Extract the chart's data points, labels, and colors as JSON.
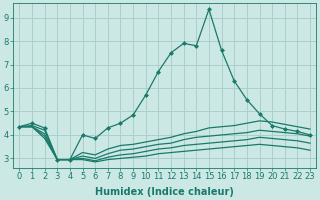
{
  "xlabel": "Humidex (Indice chaleur)",
  "x_values": [
    0,
    1,
    2,
    3,
    4,
    5,
    6,
    7,
    8,
    9,
    10,
    11,
    12,
    13,
    14,
    15,
    16,
    17,
    18,
    19,
    20,
    21,
    22,
    23
  ],
  "lines": [
    {
      "y": [
        4.35,
        4.5,
        4.3,
        2.95,
        2.95,
        4.0,
        3.85,
        4.3,
        4.5,
        4.85,
        5.7,
        6.7,
        7.5,
        7.9,
        7.8,
        9.35,
        7.6,
        6.3,
        5.5,
        4.9,
        4.4,
        4.25,
        4.15,
        4.0
      ],
      "has_markers": true
    },
    {
      "y": [
        4.35,
        4.4,
        4.2,
        2.95,
        2.95,
        3.25,
        3.15,
        3.4,
        3.55,
        3.6,
        3.7,
        3.8,
        3.9,
        4.05,
        4.15,
        4.3,
        4.35,
        4.4,
        4.5,
        4.6,
        4.55,
        4.45,
        4.35,
        4.25
      ],
      "has_markers": false
    },
    {
      "y": [
        4.35,
        4.35,
        4.05,
        2.95,
        2.95,
        3.1,
        3.0,
        3.2,
        3.35,
        3.4,
        3.5,
        3.6,
        3.65,
        3.8,
        3.9,
        3.95,
        4.0,
        4.05,
        4.1,
        4.2,
        4.15,
        4.1,
        4.05,
        3.95
      ],
      "has_markers": false
    },
    {
      "y": [
        4.35,
        4.35,
        3.95,
        2.95,
        2.95,
        3.0,
        2.9,
        3.05,
        3.15,
        3.2,
        3.3,
        3.4,
        3.45,
        3.55,
        3.6,
        3.65,
        3.7,
        3.75,
        3.8,
        3.9,
        3.85,
        3.8,
        3.75,
        3.65
      ],
      "has_markers": false
    },
    {
      "y": [
        4.35,
        4.35,
        3.85,
        2.95,
        2.95,
        2.95,
        2.85,
        2.95,
        3.0,
        3.05,
        3.1,
        3.2,
        3.25,
        3.3,
        3.35,
        3.4,
        3.45,
        3.5,
        3.55,
        3.6,
        3.55,
        3.5,
        3.45,
        3.35
      ],
      "has_markers": false
    }
  ],
  "line_color": "#1a7a6a",
  "marker": "D",
  "markersize": 2.0,
  "linewidth": 0.9,
  "ylim": [
    2.6,
    9.6
  ],
  "yticks": [
    3,
    4,
    5,
    6,
    7,
    8,
    9
  ],
  "xlim": [
    -0.5,
    23.5
  ],
  "bg_color": "#cce8e5",
  "grid_color": "#aacfcc",
  "tick_fontsize": 6,
  "label_fontsize": 7
}
